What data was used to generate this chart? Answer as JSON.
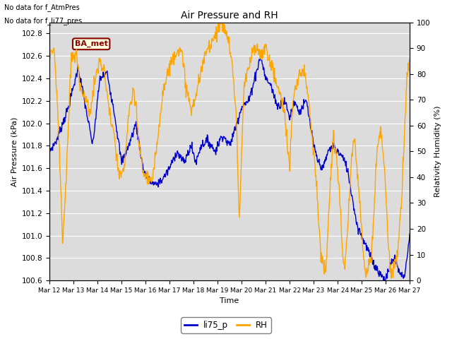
{
  "title": "Air Pressure and RH",
  "xlabel": "Time",
  "ylabel_left": "Air Pressure (kPa)",
  "ylabel_right": "Relativity Humidity (%)",
  "text_no_data1": "No data for f_AtmPres",
  "text_no_data2": "No data for f_li77_pres",
  "ba_met_label": "BA_met",
  "legend_labels": [
    "li75_p",
    "RH"
  ],
  "line_color_blue": "#0000CC",
  "line_color_orange": "#FFA500",
  "background_color": "#DCDCDC",
  "ylim_left": [
    100.6,
    102.9
  ],
  "ylim_right": [
    0,
    100
  ],
  "yticks_left": [
    100.6,
    100.8,
    101.0,
    101.2,
    101.4,
    101.6,
    101.8,
    102.0,
    102.2,
    102.4,
    102.6,
    102.8
  ],
  "yticks_right": [
    0,
    10,
    20,
    30,
    40,
    50,
    60,
    70,
    80,
    90,
    100
  ],
  "x_tick_labels": [
    "Mar 12",
    "Mar 13",
    "Mar 14",
    "Mar 15",
    "Mar 16",
    "Mar 17",
    "Mar 18",
    "Mar 19",
    "Mar 20",
    "Mar 21",
    "Mar 22",
    "Mar 23",
    "Mar 24",
    "Mar 25",
    "Mar 26",
    "Mar 27"
  ],
  "n_points": 800
}
